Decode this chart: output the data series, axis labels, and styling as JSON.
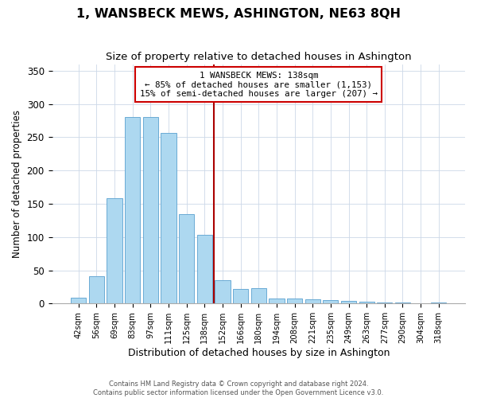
{
  "title": "1, WANSBECK MEWS, ASHINGTON, NE63 8QH",
  "subtitle": "Size of property relative to detached houses in Ashington",
  "xlabel": "Distribution of detached houses by size in Ashington",
  "ylabel": "Number of detached properties",
  "bar_labels": [
    "42sqm",
    "56sqm",
    "69sqm",
    "83sqm",
    "97sqm",
    "111sqm",
    "125sqm",
    "138sqm",
    "152sqm",
    "166sqm",
    "180sqm",
    "194sqm",
    "208sqm",
    "221sqm",
    "235sqm",
    "249sqm",
    "263sqm",
    "277sqm",
    "290sqm",
    "304sqm",
    "318sqm"
  ],
  "bar_heights": [
    9,
    41,
    158,
    280,
    281,
    256,
    135,
    103,
    35,
    22,
    23,
    8,
    7,
    6,
    5,
    4,
    3,
    2,
    2,
    1,
    2
  ],
  "bar_color": "#add8f0",
  "bar_edge_color": "#6aaad4",
  "vline_x": 7.5,
  "vline_color": "#aa0000",
  "annotation_title": "1 WANSBECK MEWS: 138sqm",
  "annotation_line1": "← 85% of detached houses are smaller (1,153)",
  "annotation_line2": "15% of semi-detached houses are larger (207) →",
  "annotation_box_color": "#ffffff",
  "annotation_box_edge": "#cc0000",
  "ylim": [
    0,
    360
  ],
  "footer1": "Contains HM Land Registry data © Crown copyright and database right 2024.",
  "footer2": "Contains public sector information licensed under the Open Government Licence v3.0.",
  "title_fontsize": 11.5,
  "subtitle_fontsize": 9.5,
  "xlabel_fontsize": 9,
  "ylabel_fontsize": 8.5
}
